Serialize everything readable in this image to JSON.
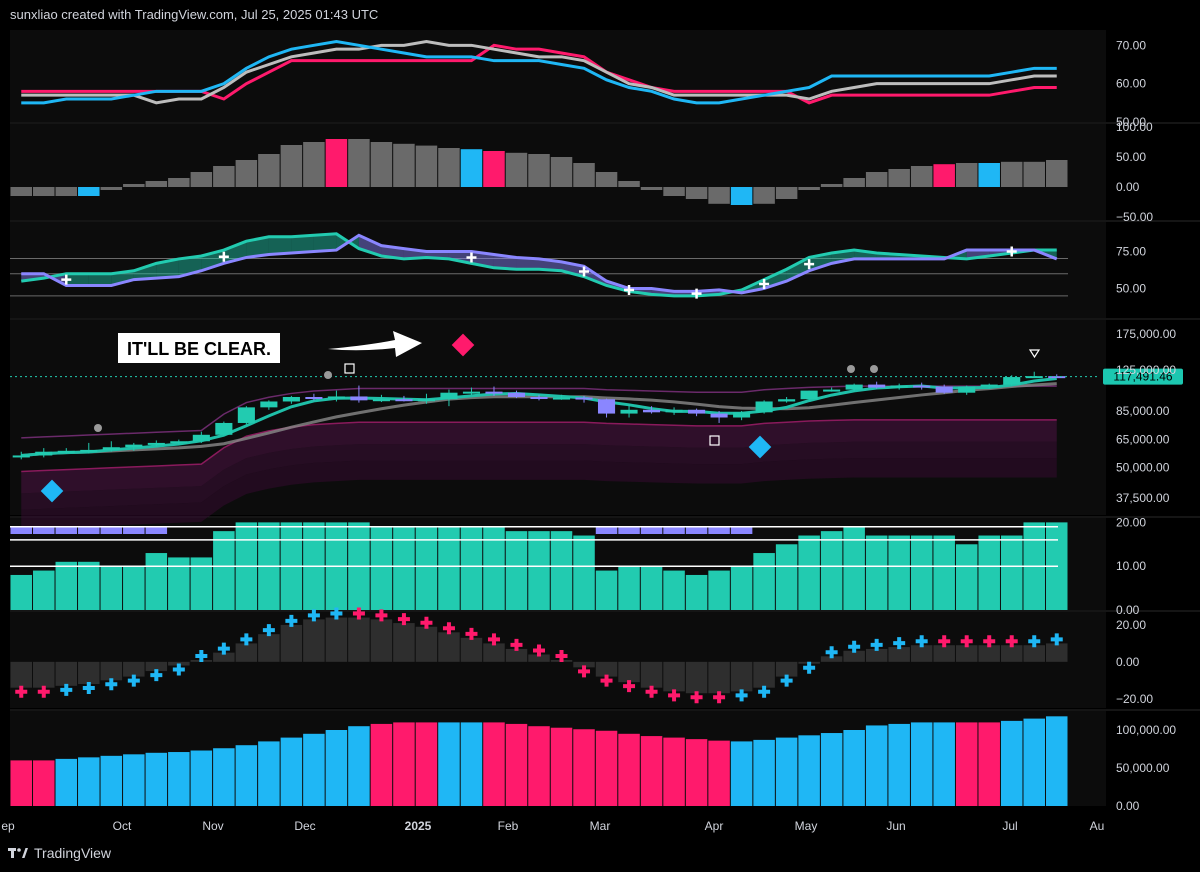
{
  "header": {
    "attribution": "sunxliao created with TradingView.com, Jul 25, 2025 01:43 UTC"
  },
  "branding": {
    "name": "TradingView"
  },
  "annotation": {
    "text": "IT'LL BE CLEAR."
  },
  "price_tag": "117,491.46",
  "colors": {
    "pink": "#ff1a6c",
    "cyan": "#1fb7f5",
    "gray": "#bdbdbd",
    "teal": "#22cbb0",
    "purple": "#8a86ff",
    "white": "#ffffff",
    "bg": "#000000",
    "panel": "#0c0c0c",
    "tag": "#1cc7b0"
  },
  "x_axis": {
    "ticks": [
      "ep",
      "Oct",
      "Nov",
      "Dec",
      "2025",
      "Feb",
      "Mar",
      "Apr",
      "May",
      "Jun",
      "Jul",
      "Au"
    ]
  },
  "chart_data": [
    {
      "type": "line",
      "panel": "rsi-lines",
      "x": [
        "2024-09-02",
        "2024-09-09",
        "2024-09-16",
        "2024-09-23",
        "2024-09-30",
        "2024-10-07",
        "2024-10-14",
        "2024-10-21",
        "2024-10-28",
        "2024-11-04",
        "2024-11-11",
        "2024-11-18",
        "2024-11-25",
        "2024-12-02",
        "2024-12-09",
        "2024-12-16",
        "2024-12-23",
        "2024-12-30",
        "2025-01-06",
        "2025-01-13",
        "2025-01-20",
        "2025-01-27",
        "2025-02-03",
        "2025-02-10",
        "2025-02-17",
        "2025-02-24",
        "2025-03-03",
        "2025-03-10",
        "2025-03-17",
        "2025-03-24",
        "2025-03-31",
        "2025-04-07",
        "2025-04-14",
        "2025-04-21",
        "2025-04-28",
        "2025-05-05",
        "2025-05-12",
        "2025-05-19",
        "2025-05-26",
        "2025-06-02",
        "2025-06-09",
        "2025-06-16",
        "2025-06-23",
        "2025-06-30",
        "2025-07-07",
        "2025-07-14",
        "2025-07-21"
      ],
      "series": [
        {
          "color": "pink",
          "values": [
            58,
            58,
            58,
            58,
            58,
            58,
            58,
            58,
            58,
            56,
            60,
            63,
            66,
            66,
            66,
            66,
            66,
            66,
            66,
            66,
            66,
            70,
            69,
            69,
            68,
            67,
            63,
            61,
            59,
            58,
            58,
            58,
            58,
            58,
            58,
            55,
            57,
            57,
            57,
            57,
            57,
            57,
            57,
            57,
            58,
            59,
            59
          ]
        },
        {
          "color": "gray",
          "values": [
            57,
            57,
            57,
            57,
            57,
            57,
            55,
            56,
            56,
            59,
            63,
            65,
            67,
            68,
            69,
            69,
            70,
            70,
            71,
            70,
            70,
            69,
            68,
            67,
            67,
            66,
            63,
            60,
            59,
            57,
            57,
            57,
            57,
            57,
            57,
            56,
            58,
            59,
            60,
            60,
            60,
            60,
            60,
            60,
            61,
            62,
            62
          ]
        },
        {
          "color": "cyan",
          "values": [
            55,
            55,
            56,
            56,
            56,
            57,
            58,
            58,
            58,
            60,
            64,
            67,
            69,
            70,
            71,
            70,
            69,
            68,
            67,
            67,
            67,
            66,
            66,
            66,
            65,
            64,
            61,
            59,
            58,
            56,
            55,
            55,
            56,
            57,
            58,
            59,
            62,
            62,
            62,
            62,
            62,
            62,
            62,
            62,
            63,
            64,
            64
          ]
        }
      ],
      "y_ticks": [
        "70.00",
        "60.00",
        "50.00"
      ],
      "ylim": [
        50,
        74
      ]
    },
    {
      "type": "bar",
      "panel": "momentum-histogram",
      "values": [
        -15,
        -15,
        -15,
        -15,
        -5,
        5,
        10,
        15,
        25,
        35,
        45,
        55,
        70,
        75,
        80,
        80,
        75,
        72,
        69,
        65,
        63,
        60,
        57,
        55,
        50,
        40,
        25,
        10,
        -5,
        -15,
        -20,
        -28,
        -30,
        -28,
        -20,
        -5,
        5,
        15,
        25,
        30,
        35,
        38,
        40,
        40,
        42,
        42,
        45
      ],
      "colors": [
        "gray",
        "gray",
        "gray",
        "cyan",
        "gray",
        "gray",
        "gray",
        "gray",
        "gray",
        "gray",
        "gray",
        "gray",
        "gray",
        "gray",
        "pink",
        "gray",
        "gray",
        "gray",
        "gray",
        "gray",
        "cyan",
        "pink",
        "gray",
        "gray",
        "gray",
        "gray",
        "gray",
        "gray",
        "gray",
        "gray",
        "gray",
        "gray",
        "cyan",
        "gray",
        "gray",
        "gray",
        "gray",
        "gray",
        "gray",
        "gray",
        "gray",
        "pink",
        "gray",
        "cyan",
        "gray",
        "gray",
        "gray"
      ],
      "y_ticks": [
        "100.00",
        "50.00",
        "0.00",
        "−50.00"
      ],
      "ylim": [
        -55,
        105
      ]
    },
    {
      "type": "area",
      "panel": "stochastic-cloud",
      "series": [
        {
          "color": "teal",
          "values": [
            55,
            57,
            60,
            60,
            60,
            62,
            67,
            70,
            72,
            76,
            82,
            85,
            85,
            86,
            87,
            77,
            72,
            70,
            71,
            70,
            67,
            64,
            63,
            63,
            62,
            58,
            52,
            48,
            46,
            45,
            45,
            46,
            49,
            56,
            63,
            71,
            74,
            76,
            74,
            73,
            72,
            71,
            70,
            72,
            74,
            76,
            76
          ]
        },
        {
          "color": "purple",
          "values": [
            60,
            60,
            52,
            52,
            52,
            56,
            57,
            58,
            62,
            67,
            71,
            73,
            74,
            75,
            76,
            86,
            79,
            77,
            75,
            75,
            75,
            73,
            71,
            70,
            68,
            65,
            55,
            50,
            50,
            48,
            48,
            49,
            47,
            50,
            55,
            62,
            67,
            70,
            70,
            70,
            70,
            70,
            76,
            76,
            76,
            76,
            70
          ]
        }
      ],
      "y_ticks": [
        "75.00",
        "50.00"
      ],
      "ylim": [
        30,
        95
      ]
    },
    {
      "type": "line",
      "panel": "price-ohlc",
      "candles": [
        [
          56000,
          58000,
          54000,
          56000
        ],
        [
          56000,
          60000,
          55000,
          58000
        ],
        [
          58000,
          60000,
          57000,
          58500
        ],
        [
          58500,
          63000,
          57000,
          59000
        ],
        [
          59000,
          64000,
          58000,
          60500
        ],
        [
          60500,
          63000,
          58500,
          62000
        ],
        [
          62000,
          64500,
          61000,
          63000
        ],
        [
          63000,
          65000,
          62000,
          64000
        ],
        [
          64000,
          70000,
          63000,
          68000
        ],
        [
          68000,
          77000,
          67000,
          76000
        ],
        [
          76000,
          89000,
          75000,
          88000
        ],
        [
          88000,
          94000,
          86000,
          93000
        ],
        [
          93000,
          98000,
          91000,
          97000
        ],
        [
          97000,
          100000,
          94000,
          96000
        ],
        [
          96000,
          103000,
          93000,
          97500
        ],
        [
          97500,
          108000,
          92000,
          94000
        ],
        [
          94000,
          99000,
          92500,
          95000
        ],
        [
          95000,
          98000,
          93000,
          94000
        ],
        [
          94000,
          100000,
          91000,
          95000
        ],
        [
          95000,
          104000,
          89000,
          101000
        ],
        [
          101000,
          106000,
          99000,
          102000
        ],
        [
          102000,
          107000,
          98000,
          101000
        ],
        [
          101000,
          103000,
          96000,
          97000
        ],
        [
          97000,
          99000,
          94000,
          96000
        ],
        [
          96000,
          99000,
          94500,
          96500
        ],
        [
          96500,
          98000,
          92000,
          95000
        ],
        [
          95000,
          95500,
          80000,
          83000
        ],
        [
          83000,
          90000,
          80000,
          86000
        ],
        [
          86000,
          89000,
          83000,
          84000
        ],
        [
          84000,
          88000,
          82000,
          86000
        ],
        [
          86000,
          87000,
          81000,
          83000
        ],
        [
          83000,
          85000,
          76000,
          80000
        ],
        [
          80000,
          85000,
          78000,
          84000
        ],
        [
          84000,
          94000,
          83000,
          93000
        ],
        [
          93000,
          97000,
          92000,
          95000
        ],
        [
          95000,
          103000,
          94000,
          103000
        ],
        [
          103000,
          106000,
          102000,
          104000
        ],
        [
          104000,
          110000,
          102000,
          109000
        ],
        [
          109000,
          112000,
          105000,
          106000
        ],
        [
          106000,
          110000,
          104000,
          108000
        ],
        [
          108000,
          111000,
          104000,
          107000
        ],
        [
          107000,
          109000,
          100000,
          101000
        ],
        [
          101000,
          108000,
          99000,
          107000
        ],
        [
          107000,
          110000,
          105000,
          109000
        ],
        [
          109000,
          119000,
          108000,
          117000
        ],
        [
          117000,
          123000,
          116000,
          118000
        ],
        [
          118000,
          120000,
          116000,
          117500
        ]
      ],
      "y_ticks": [
        "175,000.00",
        "125,000.00",
        "85,000.00",
        "65,000.00",
        "50,000.00",
        "37,500.00"
      ],
      "last_price": 117491.46
    },
    {
      "type": "bar",
      "panel": "strength-histogram",
      "values": [
        8,
        9,
        11,
        11,
        10,
        10,
        13,
        12,
        12,
        18,
        20,
        20,
        20,
        20,
        20,
        20,
        19,
        19,
        19,
        19,
        19,
        19,
        18,
        18,
        18,
        17,
        9,
        10,
        10,
        9,
        8,
        9,
        10,
        13,
        15,
        17,
        18,
        19,
        17,
        17,
        17,
        17,
        15,
        17,
        17,
        20,
        20
      ],
      "y_ticks": [
        "20.00",
        "10.00",
        "0.00"
      ],
      "ylim": [
        0,
        21
      ]
    },
    {
      "type": "bar",
      "panel": "cross-oscillator",
      "values": [
        -14,
        -14,
        -13,
        -12,
        -10,
        -8,
        -5,
        -2,
        1,
        5,
        10,
        15,
        20,
        23,
        24,
        24,
        23,
        21,
        19,
        16,
        13,
        10,
        7,
        4,
        1,
        -3,
        -8,
        -11,
        -14,
        -16,
        -17,
        -17,
        -16,
        -14,
        -8,
        -1,
        3,
        6,
        7,
        8,
        9,
        9,
        9,
        9,
        9,
        9,
        10
      ],
      "colors": [
        "pink",
        "pink",
        "cyan",
        "cyan",
        "cyan",
        "cyan",
        "cyan",
        "cyan",
        "cyan",
        "cyan",
        "cyan",
        "cyan",
        "cyan",
        "cyan",
        "cyan",
        "pink",
        "pink",
        "pink",
        "pink",
        "pink",
        "pink",
        "pink",
        "pink",
        "pink",
        "pink",
        "pink",
        "pink",
        "pink",
        "pink",
        "pink",
        "pink",
        "pink",
        "cyan",
        "cyan",
        "cyan",
        "cyan",
        "cyan",
        "cyan",
        "cyan",
        "cyan",
        "cyan",
        "pink",
        "pink",
        "pink",
        "pink",
        "cyan",
        "cyan"
      ],
      "y_ticks": [
        "20.00",
        "0.00",
        "−20.00"
      ],
      "ylim": [
        -25,
        27
      ]
    },
    {
      "type": "bar",
      "panel": "volume-histogram",
      "values": [
        60000,
        60000,
        62000,
        64000,
        66000,
        68000,
        70000,
        71000,
        73000,
        76000,
        80000,
        85000,
        90000,
        95000,
        100000,
        105000,
        108000,
        110000,
        110000,
        110000,
        110000,
        110000,
        108000,
        105000,
        103000,
        101000,
        99000,
        95000,
        92000,
        90000,
        88000,
        86000,
        85000,
        87000,
        90000,
        93000,
        96000,
        100000,
        106000,
        108000,
        110000,
        110000,
        110000,
        110000,
        112000,
        115000,
        118000
      ],
      "colors": [
        "pink",
        "pink",
        "cyan",
        "cyan",
        "cyan",
        "cyan",
        "cyan",
        "cyan",
        "cyan",
        "cyan",
        "cyan",
        "cyan",
        "cyan",
        "cyan",
        "cyan",
        "cyan",
        "pink",
        "pink",
        "pink",
        "cyan",
        "cyan",
        "pink",
        "pink",
        "pink",
        "pink",
        "pink",
        "pink",
        "pink",
        "pink",
        "pink",
        "pink",
        "pink",
        "cyan",
        "cyan",
        "cyan",
        "cyan",
        "cyan",
        "cyan",
        "cyan",
        "cyan",
        "cyan",
        "cyan",
        "pink",
        "pink",
        "cyan",
        "cyan",
        "cyan"
      ],
      "y_ticks": [
        "100,000.00",
        "50,000.00",
        "0.00"
      ],
      "ylim": [
        0,
        125000
      ]
    }
  ]
}
